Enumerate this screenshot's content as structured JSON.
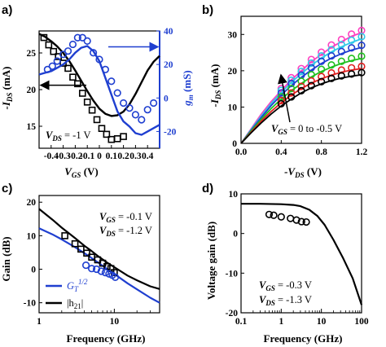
{
  "colors": {
    "black": "#000000",
    "blue": "#1f3fd0",
    "magenta": "#ff40c0",
    "cyan": "#30c8e8",
    "green": "#20c020",
    "red": "#e02020",
    "navy": "#1f3fd0"
  },
  "chart_data": [
    {
      "id": "a",
      "panel_label": "a)",
      "type": "line",
      "xlabel_main": "V",
      "xlabel_sub": "GS",
      "xlabel_unit": " (V)",
      "ylabel_left_main": "-I",
      "ylabel_left_sub": "DS",
      "ylabel_left_unit": " (mA)",
      "ylabel_right_main": "g",
      "ylabel_right_sub": "m",
      "ylabel_right_unit": " (mS)",
      "xlim": [
        -0.5,
        0.5
      ],
      "ylim_left": [
        12,
        28
      ],
      "ylim_right": [
        -30,
        40
      ],
      "xticks": [
        -0.4,
        -0.3,
        -0.2,
        -0.1,
        0,
        0.1,
        0.2,
        0.3,
        0.4
      ],
      "xtick_labels": [
        "-0.4",
        "-0.3",
        "-0.2",
        "-0.1",
        "0",
        "0.1",
        "0.2",
        "0.3",
        "0.4"
      ],
      "yticks_left": [
        15,
        20,
        25
      ],
      "yticks_right": [
        -20,
        0,
        20,
        40
      ],
      "annotation_main": "V",
      "annotation_sub": "DS",
      "annotation_rest": " = -1 V",
      "series": [
        {
          "axis": "left",
          "style": "line",
          "color": "black",
          "x": [
            -0.5,
            -0.45,
            -0.4,
            -0.35,
            -0.3,
            -0.25,
            -0.2,
            -0.15,
            -0.1,
            -0.05,
            0,
            0.05,
            0.1,
            0.15,
            0.2,
            0.25,
            0.3,
            0.35,
            0.4,
            0.45,
            0.5
          ],
          "y": [
            27.6,
            27.2,
            26.6,
            25.9,
            25.0,
            23.9,
            22.6,
            21.2,
            19.8,
            18.5,
            17.4,
            16.7,
            16.4,
            16.5,
            17.0,
            18.0,
            19.4,
            21.0,
            22.6,
            23.8,
            24.6
          ]
        },
        {
          "axis": "left",
          "style": "square",
          "color": "black",
          "x": [
            -0.46,
            -0.42,
            -0.38,
            -0.34,
            -0.3,
            -0.26,
            -0.22,
            -0.18,
            -0.14,
            -0.1,
            -0.06,
            -0.02,
            0.02,
            0.06,
            0.1,
            0.15,
            0.2
          ],
          "y": [
            27.1,
            26.1,
            25.2,
            24.5,
            23.6,
            22.9,
            21.7,
            20.8,
            19.5,
            18.3,
            17.2,
            15.9,
            14.7,
            13.9,
            13.2,
            13.3,
            13.6
          ]
        },
        {
          "axis": "right",
          "style": "line",
          "color": "blue",
          "x": [
            -0.5,
            -0.45,
            -0.4,
            -0.35,
            -0.3,
            -0.25,
            -0.2,
            -0.15,
            -0.1,
            -0.05,
            0,
            0.05,
            0.1,
            0.15,
            0.2,
            0.25,
            0.3,
            0.35,
            0.4,
            0.45,
            0.5
          ],
          "y": [
            14,
            15,
            16,
            18,
            20,
            23,
            27,
            30,
            31,
            28,
            22,
            12,
            2,
            -8,
            -14,
            -17,
            -21,
            -22,
            -20,
            -18,
            -16
          ]
        },
        {
          "axis": "right",
          "style": "circle",
          "color": "blue",
          "x": [
            -0.43,
            -0.39,
            -0.35,
            -0.3,
            -0.26,
            -0.22,
            -0.18,
            -0.14,
            -0.1,
            -0.05,
            0,
            0.05,
            0.1,
            0.15,
            0.2,
            0.25,
            0.3,
            0.35,
            0.4,
            0.45
          ],
          "y": [
            17,
            19,
            22,
            26,
            28,
            32,
            36,
            36,
            34,
            27,
            23,
            17,
            10,
            3,
            -3,
            -6,
            -10,
            -13,
            -7,
            -3
          ]
        }
      ]
    },
    {
      "id": "b",
      "panel_label": "b)",
      "type": "line",
      "xlabel_main": "-V",
      "xlabel_sub": "DS",
      "xlabel_unit": " (V)",
      "ylabel_main": "-I",
      "ylabel_sub": "DS",
      "ylabel_unit": " (mA)",
      "xlim": [
        0,
        1.2
      ],
      "ylim": [
        0,
        35
      ],
      "xticks": [
        0.0,
        0.4,
        0.8,
        1.2
      ],
      "xtick_labels": [
        "0.0",
        "0.4",
        "0.8",
        "1.2"
      ],
      "yticks": [
        0,
        10,
        20,
        30
      ],
      "annotation_main": "V",
      "annotation_sub": "GS",
      "annotation_rest": " = 0 to -0.5 V",
      "series": [
        {
          "color": "magenta",
          "x": [
            0,
            0.1,
            0.2,
            0.3,
            0.4,
            0.5,
            0.6,
            0.7,
            0.8,
            0.9,
            1.0,
            1.1,
            1.2
          ],
          "y": [
            0,
            4,
            8,
            11.5,
            14.5,
            17.5,
            20,
            22.5,
            24.5,
            26.5,
            28,
            29.5,
            30.5
          ]
        },
        {
          "color": "cyan",
          "x": [
            0,
            0.1,
            0.2,
            0.3,
            0.4,
            0.5,
            0.6,
            0.7,
            0.8,
            0.9,
            1.0,
            1.1,
            1.2
          ],
          "y": [
            0,
            3.8,
            7.5,
            11,
            14,
            16.8,
            19.2,
            21.5,
            23.5,
            25.2,
            26.6,
            27.8,
            28.8
          ]
        },
        {
          "color": "navy",
          "x": [
            0,
            0.1,
            0.2,
            0.3,
            0.4,
            0.5,
            0.6,
            0.7,
            0.8,
            0.9,
            1.0,
            1.1,
            1.2
          ],
          "y": [
            0,
            3.6,
            7.1,
            10.4,
            13.3,
            15.9,
            18.2,
            20.2,
            22,
            23.5,
            24.7,
            25.7,
            26.4
          ]
        },
        {
          "color": "green",
          "x": [
            0,
            0.1,
            0.2,
            0.3,
            0.4,
            0.5,
            0.6,
            0.7,
            0.8,
            0.9,
            1.0,
            1.1,
            1.2
          ],
          "y": [
            0,
            3.4,
            6.6,
            9.6,
            12.2,
            14.5,
            16.5,
            18.3,
            19.8,
            21,
            22,
            22.8,
            23.4
          ]
        },
        {
          "color": "red",
          "x": [
            0,
            0.1,
            0.2,
            0.3,
            0.4,
            0.5,
            0.6,
            0.7,
            0.8,
            0.9,
            1.0,
            1.1,
            1.2
          ],
          "y": [
            0,
            3.1,
            6.1,
            8.8,
            11.2,
            13.3,
            15.1,
            16.6,
            17.8,
            18.8,
            19.6,
            20.2,
            20.6
          ]
        },
        {
          "color": "black",
          "x": [
            0,
            0.1,
            0.2,
            0.3,
            0.4,
            0.5,
            0.6,
            0.7,
            0.8,
            0.9,
            1.0,
            1.1,
            1.2
          ],
          "y": [
            0,
            2.9,
            5.6,
            8.1,
            10.3,
            12.2,
            13.9,
            15.3,
            16.4,
            17.3,
            18,
            18.5,
            18.9
          ]
        }
      ]
    },
    {
      "id": "c",
      "panel_label": "c)",
      "type": "line",
      "xscale": "log",
      "xlabel": "Frequency (GHz)",
      "ylabel": "Gain (dB)",
      "xlim": [
        1,
        40
      ],
      "ylim": [
        -13,
        22
      ],
      "xticks": [
        1,
        10
      ],
      "xtick_labels": [
        "1",
        "10"
      ],
      "yticks": [
        -10,
        0,
        10,
        20
      ],
      "annotation1_main": "V",
      "annotation1_sub": "GS",
      "annotation1_rest": " = -0.1 V",
      "annotation2_main": "V",
      "annotation2_sub": "DS",
      "annotation2_rest": " = -1.2 V",
      "legend": [
        {
          "main": "G",
          "sub": "T",
          "sup": "1/2",
          "color": "blue"
        },
        {
          "text": "|h",
          "sub": "21",
          "end": "|",
          "color": "black"
        }
      ],
      "series": [
        {
          "color": "black",
          "style": "line",
          "x": [
            1,
            1.5,
            2,
            3,
            4,
            5,
            6,
            8,
            10,
            15,
            20,
            30,
            40
          ],
          "y": [
            18,
            14.8,
            12.4,
            9.3,
            7.0,
            5.4,
            4.0,
            2.0,
            0.6,
            -1.9,
            -3.3,
            -5.1,
            -5.9
          ]
        },
        {
          "color": "blue",
          "style": "line",
          "x": [
            1,
            1.5,
            2,
            3,
            4,
            5,
            6,
            8,
            10,
            15,
            20,
            30,
            40
          ],
          "y": [
            12.2,
            10.4,
            8.9,
            6.6,
            4.8,
            3.3,
            2.1,
            0.1,
            -1.4,
            -4.2,
            -6.0,
            -8.5,
            -10.0
          ]
        },
        {
          "color": "black",
          "style": "square",
          "x": [
            2.2,
            3.0,
            3.6,
            4.3,
            5.0,
            6.0,
            7.0,
            8.0,
            9.0,
            10.0
          ],
          "y": [
            10,
            7.6,
            6.0,
            4.8,
            3.6,
            2.8,
            1.8,
            0.8,
            0.2,
            -1.0
          ]
        },
        {
          "color": "blue",
          "style": "circle",
          "x": [
            4.2,
            5.0,
            5.8,
            6.7,
            7.6,
            8.5,
            9.4,
            10.3
          ],
          "y": [
            1.2,
            0.2,
            0,
            -0.6,
            -1.0,
            -1.4,
            -1.8,
            -2.4
          ]
        }
      ]
    },
    {
      "id": "d",
      "panel_label": "d)",
      "type": "line",
      "xscale": "log",
      "xlabel": "Frequency (GHz)",
      "ylabel": "Voltage gain (dB)",
      "xlim": [
        0.1,
        100
      ],
      "ylim": [
        -20,
        10
      ],
      "xticks": [
        0.1,
        1,
        10,
        100
      ],
      "xtick_labels": [
        "0.1",
        "1",
        "10",
        "100"
      ],
      "yticks": [
        -20,
        -10,
        0,
        10
      ],
      "annotation1_main": "V",
      "annotation1_sub": "GS",
      "annotation1_rest": " = -0.3 V",
      "annotation2_main": "V",
      "annotation2_sub": "DS",
      "annotation2_rest": " = -1.3 V",
      "series": [
        {
          "color": "black",
          "style": "line",
          "x": [
            0.1,
            0.3,
            1,
            2,
            3,
            5,
            8,
            12,
            20,
            35,
            60,
            100
          ],
          "y": [
            7.5,
            7.5,
            7.4,
            7.2,
            6.9,
            6.0,
            4.4,
            2.2,
            -1.6,
            -6.3,
            -11.3,
            -18.0
          ]
        },
        {
          "color": "black",
          "style": "circle",
          "x": [
            0.5,
            0.65,
            1.0,
            1.7,
            2.4,
            3.2,
            4.2
          ],
          "y": [
            4.8,
            4.6,
            4.2,
            3.8,
            3.4,
            3.0,
            2.9
          ]
        }
      ]
    }
  ]
}
